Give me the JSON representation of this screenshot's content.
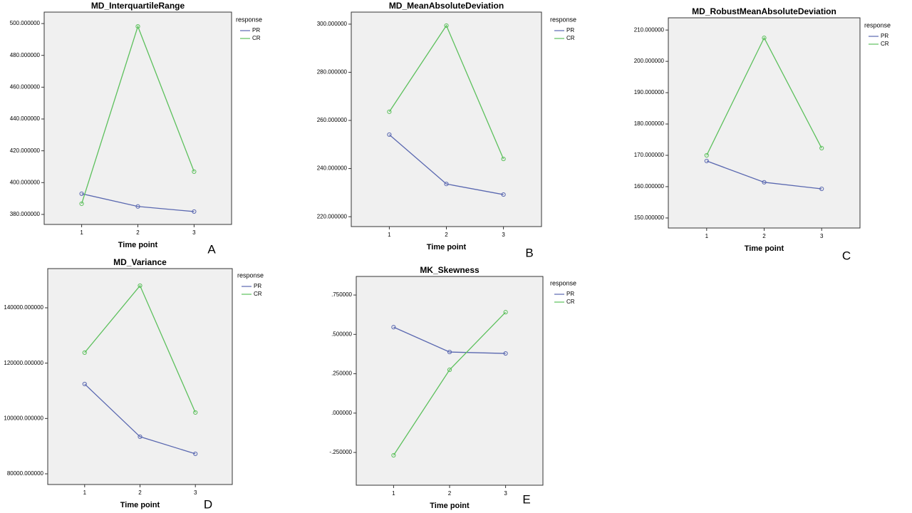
{
  "chart_data": [
    {
      "type": "line",
      "title": "MD_InterquartileRange",
      "x_label": "Time point",
      "legend_title": "response",
      "panel_label": "A",
      "categories": [
        "1",
        "2",
        "3"
      ],
      "series": [
        {
          "name": "PR",
          "color": "#5a68b0",
          "values": [
            393.0,
            385.0,
            381.8
          ]
        },
        {
          "name": "CR",
          "color": "#5cc05c",
          "values": [
            386.7,
            498.2,
            406.9
          ]
        }
      ],
      "ylim": [
        373.7,
        507.2
      ],
      "yticks": [
        {
          "value": 380,
          "label": "380.000000"
        },
        {
          "value": 400,
          "label": "400.000000"
        },
        {
          "value": 420,
          "label": "420.000000"
        },
        {
          "value": 440,
          "label": "440.000000"
        },
        {
          "value": 460,
          "label": "460.000000"
        },
        {
          "value": 480,
          "label": "480.000000"
        },
        {
          "value": 500,
          "label": "500.000000"
        }
      ]
    },
    {
      "type": "line",
      "title": "MD_MeanAbsoluteDeviation",
      "x_label": "Time point",
      "legend_title": "response",
      "panel_label": "B",
      "categories": [
        "1",
        "2",
        "3"
      ],
      "series": [
        {
          "name": "PR",
          "color": "#5a68b0",
          "values": [
            254.1,
            233.6,
            229.2
          ]
        },
        {
          "name": "CR",
          "color": "#5cc05c",
          "values": [
            263.6,
            299.4,
            244.0
          ]
        }
      ],
      "ylim": [
        215.9,
        305.0
      ],
      "yticks": [
        {
          "value": 220,
          "label": "220.000000"
        },
        {
          "value": 240,
          "label": "240.000000"
        },
        {
          "value": 260,
          "label": "260.000000"
        },
        {
          "value": 280,
          "label": "280.000000"
        },
        {
          "value": 300,
          "label": "300.000000"
        }
      ]
    },
    {
      "type": "line",
      "title": "MD_RobustMeanAbsoluteDeviation",
      "x_label": "Time point",
      "legend_title": "response",
      "panel_label": "C",
      "categories": [
        "1",
        "2",
        "3"
      ],
      "series": [
        {
          "name": "PR",
          "color": "#5a68b0",
          "values": [
            168.2,
            161.4,
            159.3
          ]
        },
        {
          "name": "CR",
          "color": "#5cc05c",
          "values": [
            170.0,
            207.5,
            172.3
          ]
        }
      ],
      "ylim": [
        146.8,
        213.9
      ],
      "yticks": [
        {
          "value": 150,
          "label": "150.000000"
        },
        {
          "value": 160,
          "label": "160.000000"
        },
        {
          "value": 170,
          "label": "170.000000"
        },
        {
          "value": 180,
          "label": "180.000000"
        },
        {
          "value": 190,
          "label": "190.000000"
        },
        {
          "value": 200,
          "label": "200.000000"
        },
        {
          "value": 210,
          "label": "210.000000"
        }
      ]
    },
    {
      "type": "line",
      "title": "MD_Variance",
      "x_label": "Time point",
      "legend_title": "response",
      "panel_label": "D",
      "categories": [
        "1",
        "2",
        "3"
      ],
      "series": [
        {
          "name": "PR",
          "color": "#5a68b0",
          "values": [
            112460,
            93410,
            87230
          ]
        },
        {
          "name": "CR",
          "color": "#5cc05c",
          "values": [
            123800,
            148000,
            102160
          ]
        }
      ],
      "ylim": [
        76140,
        154160
      ],
      "yticks": [
        {
          "value": 80000,
          "label": "80000.000000"
        },
        {
          "value": 100000,
          "label": "100000.000000"
        },
        {
          "value": 120000,
          "label": "120000.000000"
        },
        {
          "value": 140000,
          "label": "140000.000000"
        }
      ]
    },
    {
      "type": "line",
      "title": "MK_Skewness",
      "x_label": "Time point",
      "legend_title": "response",
      "panel_label": "E",
      "categories": [
        "1",
        "2",
        "3"
      ],
      "series": [
        {
          "name": "PR",
          "color": "#5a68b0",
          "values": [
            0.546,
            0.388,
            0.379
          ]
        },
        {
          "name": "CR",
          "color": "#5cc05c",
          "values": [
            -0.268,
            0.275,
            0.641
          ]
        }
      ],
      "ylim": [
        -0.458,
        0.868
      ],
      "yticks": [
        {
          "value": -0.25,
          "label": "-.250000"
        },
        {
          "value": 0,
          "label": ".000000"
        },
        {
          "value": 0.25,
          "label": ".250000"
        },
        {
          "value": 0.5,
          "label": ".500000"
        },
        {
          "value": 0.75,
          "label": ".750000"
        }
      ]
    }
  ]
}
